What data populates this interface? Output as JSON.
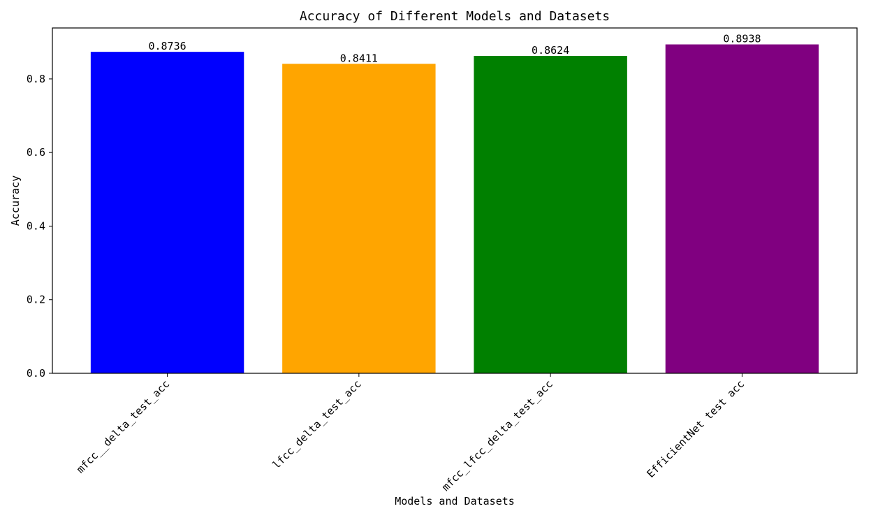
{
  "chart_data": {
    "type": "bar",
    "title": "Accuracy of Different Models and Datasets",
    "xlabel": "Models and Datasets",
    "ylabel": "Accuracy",
    "categories": [
      "mfcc__delta_test_acc",
      "lfcc_delta_test_acc",
      "mfcc_lfcc_delta_test_acc",
      "EfficientNet test acc"
    ],
    "values": [
      0.8736,
      0.8411,
      0.8624,
      0.8938
    ],
    "value_labels": [
      "0.8736",
      "0.8411",
      "0.8624",
      "0.8938"
    ],
    "colors": [
      "#0000ff",
      "#ffa500",
      "#008000",
      "#800080"
    ],
    "ylim": [
      0,
      0.9385
    ],
    "yticks": [
      0.0,
      0.2,
      0.4,
      0.6,
      0.8
    ],
    "ytick_labels": [
      "0.0",
      "0.2",
      "0.4",
      "0.6",
      "0.8"
    ],
    "grid": false,
    "legend": "none"
  }
}
